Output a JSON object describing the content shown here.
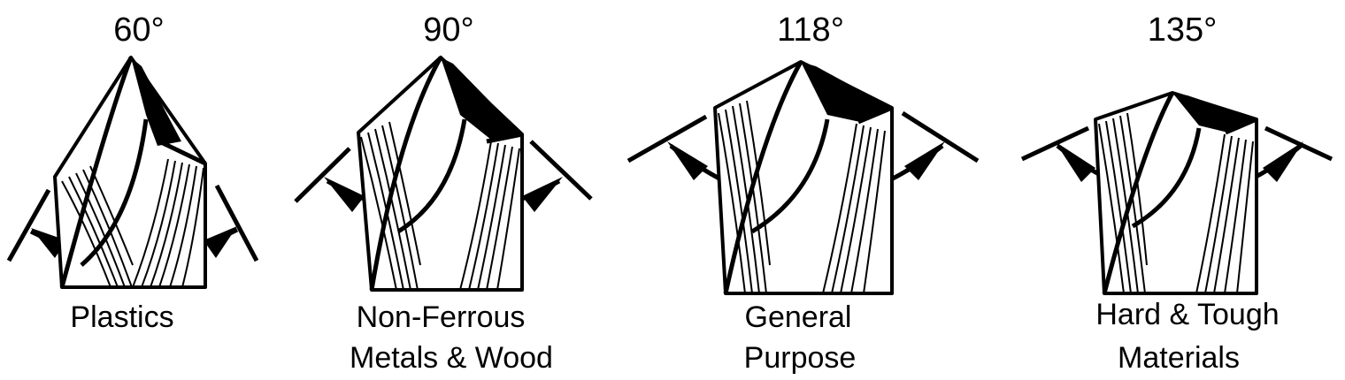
{
  "drills": [
    {
      "angle": "60°",
      "label_line1": "Plastics",
      "label_line2": ""
    },
    {
      "angle": "90°",
      "label_line1": "Non-Ferrous",
      "label_line2": "Metals & Wood"
    },
    {
      "angle": "118°",
      "label_line1": "General",
      "label_line2": "Purpose"
    },
    {
      "angle": "135°",
      "label_line1": "Hard & Tough",
      "label_line2": "Materials"
    }
  ]
}
